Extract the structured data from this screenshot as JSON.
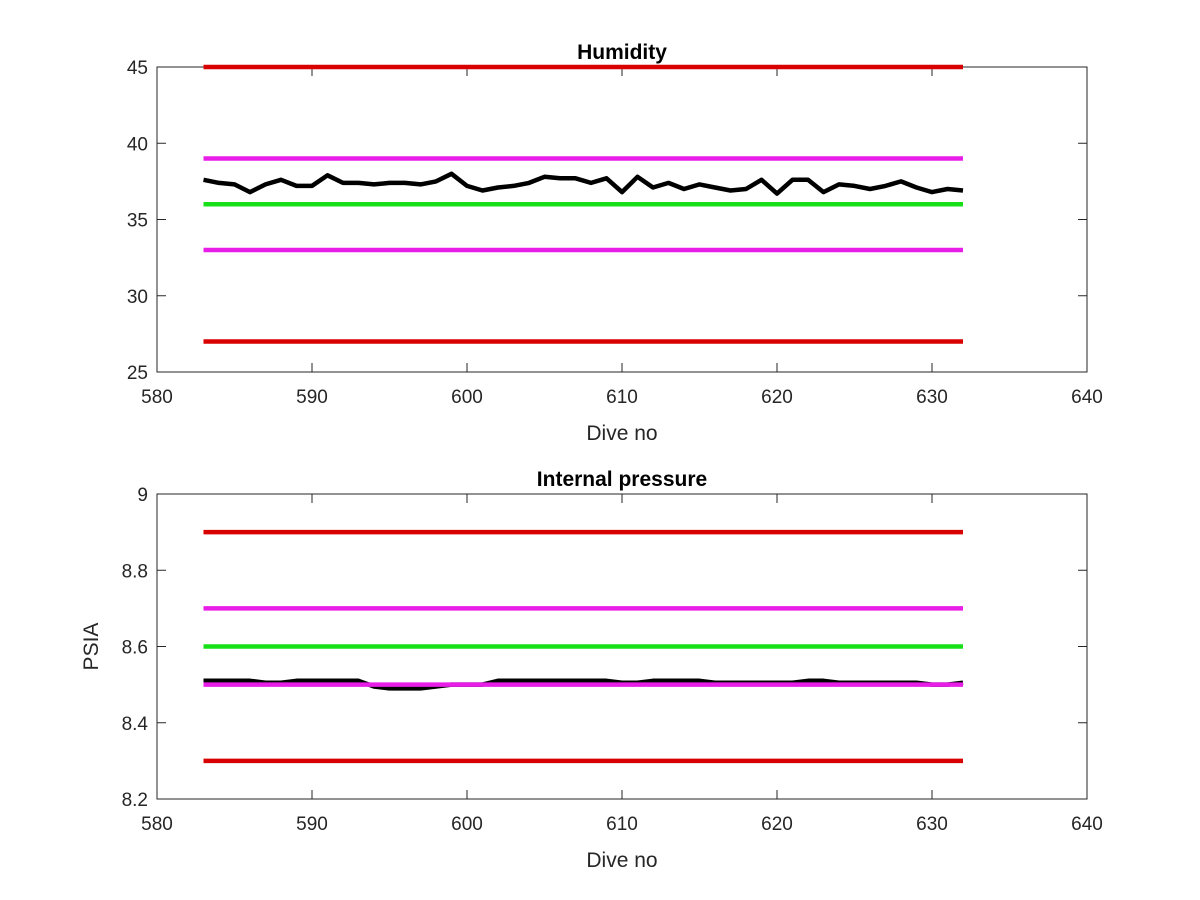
{
  "chart_data": [
    {
      "type": "line",
      "title": "Humidity",
      "xlabel": "Dive no",
      "ylabel": "",
      "xlim": [
        580,
        640
      ],
      "ylim": [
        25,
        45
      ],
      "xticks": [
        "580",
        "590",
        "600",
        "610",
        "620",
        "630",
        "640"
      ],
      "yticks": [
        "25",
        "30",
        "35",
        "40",
        "45"
      ],
      "grid": false,
      "series": [
        {
          "color": "#000000",
          "x": [
            583,
            584,
            585,
            586,
            587,
            588,
            589,
            590,
            591,
            592,
            593,
            594,
            595,
            596,
            597,
            598,
            599,
            600,
            601,
            602,
            603,
            604,
            605,
            606,
            607,
            608,
            609,
            610,
            611,
            612,
            613,
            614,
            615,
            616,
            617,
            618,
            619,
            620,
            621,
            622,
            623,
            624,
            625,
            626,
            627,
            628,
            629,
            630,
            631,
            632
          ],
          "y": [
            37.6,
            37.4,
            37.3,
            36.8,
            37.3,
            37.6,
            37.2,
            37.2,
            37.9,
            37.4,
            37.4,
            37.3,
            37.4,
            37.4,
            37.3,
            37.5,
            38.0,
            37.2,
            36.9,
            37.1,
            37.2,
            37.4,
            37.8,
            37.7,
            37.7,
            37.4,
            37.7,
            36.8,
            37.8,
            37.1,
            37.4,
            37.0,
            37.3,
            37.1,
            36.9,
            37.0,
            37.6,
            36.7,
            37.6,
            37.6,
            36.8,
            37.3,
            37.2,
            37.0,
            37.2,
            37.5,
            37.1,
            36.8,
            37.0,
            36.9
          ]
        },
        {
          "color": "#d90000",
          "x": [
            583,
            632
          ],
          "y": [
            45,
            45
          ]
        },
        {
          "color": "#e81ee8",
          "x": [
            583,
            632
          ],
          "y": [
            39,
            39
          ]
        },
        {
          "color": "#18e018",
          "x": [
            583,
            632
          ],
          "y": [
            36,
            36
          ]
        },
        {
          "color": "#e81ee8",
          "x": [
            583,
            632
          ],
          "y": [
            33,
            33
          ]
        },
        {
          "color": "#d90000",
          "x": [
            583,
            632
          ],
          "y": [
            27,
            27
          ]
        }
      ]
    },
    {
      "type": "line",
      "title": "Internal pressure",
      "xlabel": "Dive no",
      "ylabel": "PSIA",
      "xlim": [
        580,
        640
      ],
      "ylim": [
        8.2,
        9
      ],
      "xticks": [
        "580",
        "590",
        "600",
        "610",
        "620",
        "630",
        "640"
      ],
      "yticks": [
        "8.2",
        "8.4",
        "8.6",
        "8.8",
        "9"
      ],
      "grid": false,
      "series": [
        {
          "color": "#d90000",
          "x": [
            583,
            632
          ],
          "y": [
            8.9,
            8.9
          ]
        },
        {
          "color": "#e81ee8",
          "x": [
            583,
            632
          ],
          "y": [
            8.7,
            8.7
          ]
        },
        {
          "color": "#18e018",
          "x": [
            583,
            632
          ],
          "y": [
            8.6,
            8.6
          ]
        },
        {
          "color": "#d90000",
          "x": [
            583,
            632
          ],
          "y": [
            8.3,
            8.3
          ]
        },
        {
          "color": "#000000",
          "x": [
            583,
            584,
            585,
            586,
            587,
            588,
            589,
            590,
            591,
            592,
            593,
            594,
            595,
            596,
            597,
            598,
            599,
            600,
            601,
            602,
            603,
            604,
            605,
            606,
            607,
            608,
            609,
            610,
            611,
            612,
            613,
            614,
            615,
            616,
            617,
            618,
            619,
            620,
            621,
            622,
            623,
            624,
            625,
            626,
            627,
            628,
            629,
            630,
            631,
            632
          ],
          "y": [
            8.51,
            8.51,
            8.51,
            8.51,
            8.505,
            8.505,
            8.51,
            8.51,
            8.51,
            8.51,
            8.51,
            8.495,
            8.49,
            8.49,
            8.49,
            8.495,
            8.5,
            8.5,
            8.5,
            8.51,
            8.51,
            8.51,
            8.51,
            8.51,
            8.51,
            8.51,
            8.51,
            8.505,
            8.505,
            8.51,
            8.51,
            8.51,
            8.51,
            8.505,
            8.505,
            8.505,
            8.505,
            8.505,
            8.505,
            8.51,
            8.51,
            8.505,
            8.505,
            8.505,
            8.505,
            8.505,
            8.505,
            8.5,
            8.5,
            8.505
          ]
        },
        {
          "color": "#e81ee8",
          "x": [
            583,
            632
          ],
          "y": [
            8.5,
            8.5
          ]
        }
      ]
    }
  ]
}
